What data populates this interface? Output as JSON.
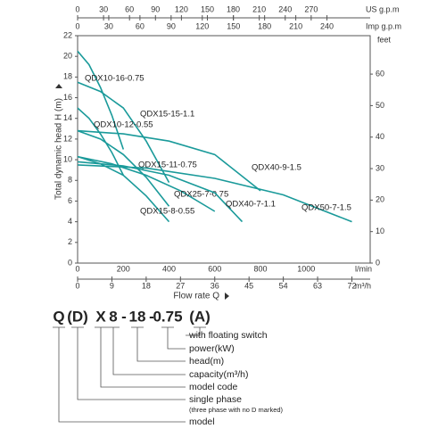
{
  "chart_data": {
    "type": "line",
    "xlabel": "Flow rate Q",
    "xlabel_unit": "l/min",
    "ylabel": "Total dynamic head H (m)",
    "xlim": [
      0,
      1280
    ],
    "xticks": [
      0,
      200,
      400,
      600,
      800,
      1000
    ],
    "ylim": [
      0,
      22
    ],
    "yticks": [
      0,
      2,
      4,
      6,
      8,
      10,
      12,
      14,
      16,
      18,
      20,
      22
    ],
    "grid": true,
    "us_gpm_axis": {
      "label": "US g.p.m",
      "lim": [
        0,
        338.2
      ],
      "ticks": [
        0,
        30,
        60,
        90,
        120,
        150,
        180,
        210,
        240,
        270
      ]
    },
    "imp_gpm_axis": {
      "label": "Imp g.p.m",
      "lim": [
        0,
        281.6
      ],
      "ticks": [
        0,
        30,
        60,
        90,
        120,
        150,
        180,
        210,
        240
      ]
    },
    "m3h_axis": {
      "label": "m³/h",
      "lim": [
        0,
        76.8
      ],
      "ticks": [
        0,
        9,
        18,
        27,
        36,
        45,
        54,
        63,
        72
      ]
    },
    "feet_axis": {
      "label": "feet",
      "lim": [
        0,
        72.2
      ],
      "ticks": [
        0,
        10,
        20,
        30,
        40,
        50,
        60
      ]
    },
    "series": [
      {
        "name": "QDX10-16-0.75",
        "color": "#1a9a9a",
        "x": [
          0,
          50,
          100,
          150,
          200
        ],
        "values": [
          20.5,
          19.2,
          17,
          14.3,
          11
        ]
      },
      {
        "name": "QDX15-15-1.1",
        "color": "#1a9a9a",
        "x": [
          0,
          100,
          200,
          300,
          400
        ],
        "values": [
          17.5,
          16.6,
          15,
          11.8,
          7.8
        ]
      },
      {
        "name": "QDX10-12-0.55",
        "color": "#1a9a9a",
        "x": [
          0,
          50,
          100,
          150,
          200
        ],
        "values": [
          15,
          14,
          12.5,
          10.7,
          8.5
        ]
      },
      {
        "name": "QDX15-11-0.75",
        "color": "#1a9a9a",
        "x": [
          0,
          100,
          200,
          300,
          400
        ],
        "values": [
          12.8,
          12,
          10.5,
          8.3,
          5.5
        ]
      },
      {
        "name": "QDX40-9-1.5",
        "color": "#1a9a9a",
        "x": [
          0,
          200,
          400,
          600,
          800
        ],
        "values": [
          12.8,
          12.5,
          11.8,
          10.5,
          7
        ]
      },
      {
        "name": "QDX25-7-0.75",
        "color": "#1a9a9a",
        "x": [
          0,
          150,
          300,
          450,
          600
        ],
        "values": [
          10.3,
          9.6,
          8.5,
          7,
          5
        ]
      },
      {
        "name": "QDX40-7-1.1",
        "color": "#1a9a9a",
        "x": [
          0,
          200,
          400,
          600,
          720
        ],
        "values": [
          9.8,
          9.4,
          8.5,
          6.8,
          4
        ]
      },
      {
        "name": "QDX15-8-0.55",
        "color": "#1a9a9a",
        "x": [
          0,
          100,
          200,
          300,
          400
        ],
        "values": [
          10.3,
          9.6,
          8.5,
          6.5,
          4
        ]
      },
      {
        "name": "QDX50-7-1.5",
        "color": "#1a9a9a",
        "x": [
          0,
          300,
          600,
          900,
          1200
        ],
        "values": [
          9.5,
          9.2,
          8.2,
          6.6,
          4
        ]
      }
    ]
  },
  "model_code": {
    "parts": [
      "Q",
      "(D)",
      "X",
      "8",
      "-",
      "18",
      "-",
      "0.75",
      "(A)"
    ],
    "legend": [
      {
        "text": "with floating switch"
      },
      {
        "text": "power(kW)"
      },
      {
        "text": "head(m)"
      },
      {
        "text": "capacity(m³/h)"
      },
      {
        "text": "model code"
      },
      {
        "text": "single phase",
        "note": "(three phase with no D marked)"
      },
      {
        "text": "model"
      }
    ]
  }
}
